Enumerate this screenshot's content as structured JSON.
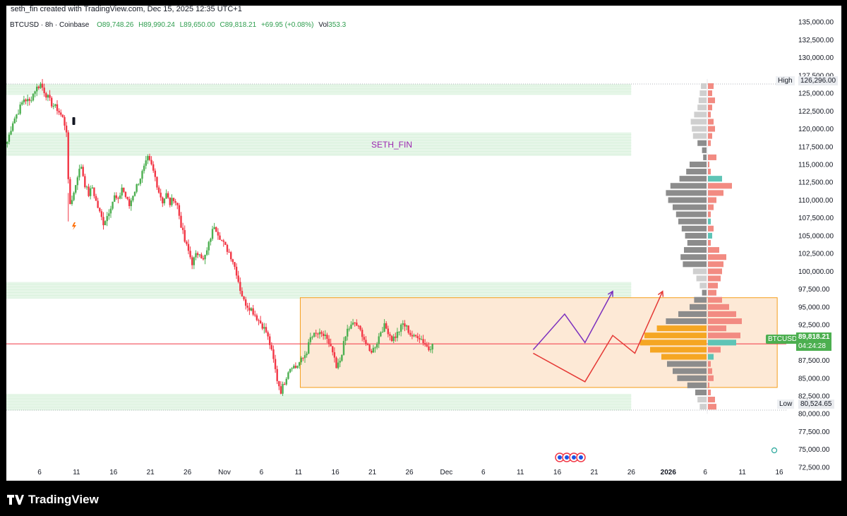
{
  "header": {
    "title": "seth_fin created with TradingView.com, Dec 15, 2025 12:35 UTC+1",
    "symbol": "BTCUSD",
    "interval": "8h",
    "exchange": "Coinbase",
    "open": "O89,748.26",
    "high": "H89,990.24",
    "low": "L89,650.00",
    "close": "C89,818.21",
    "change": "+69.95 (+0.08%)",
    "volume_label": "Vol",
    "volume": "353.3"
  },
  "watermark_text": "SETH_FIN",
  "price_tags": {
    "high_label": "High",
    "high_value": "126,296.00",
    "low_label": "Low",
    "low_value": "80,524.65",
    "current_symbol": "BTCUSD",
    "current_price": "89,818.21",
    "countdown": "04:24:28"
  },
  "footer": {
    "brand": "TradingView"
  },
  "colors": {
    "up": "#26a69a",
    "up_candle": "#4caf50",
    "down_candle": "#f23645",
    "zone_green": "#e6f6e8",
    "range_box_fill": "#fde9d6",
    "range_box_border": "#f59e1b",
    "projection_purple": "#7b2fbe",
    "projection_red": "#e53935",
    "current_line": "#f23645",
    "vp_gray": "#8c8c8c",
    "vp_pink": "#f28b82",
    "vp_orange": "#f5a623",
    "price_tag_green": "#4caf50"
  },
  "chart_data": {
    "type": "candlestick",
    "symbol": "BTCUSD",
    "interval": "8h",
    "y_axis_ticks": [
      "135,000.00",
      "132,500.00",
      "130,000.00",
      "127,500.00",
      "125,000.00",
      "122,500.00",
      "120,000.00",
      "117,500.00",
      "115,000.00",
      "112,500.00",
      "110,000.00",
      "107,500.00",
      "105,000.00",
      "102,500.00",
      "100,000.00",
      "97,500.00",
      "95,000.00",
      "92,500.00",
      "90,000.00",
      "87,500.00",
      "85,000.00",
      "82,500.00",
      "80,000.00",
      "77,500.00",
      "75,000.00",
      "72,500.00"
    ],
    "y_range": [
      71800,
      136500
    ],
    "x_axis_ticks": [
      "6",
      "11",
      "16",
      "21",
      "26",
      "Nov",
      "6",
      "11",
      "16",
      "21",
      "26",
      "Dec",
      "6",
      "11",
      "16",
      "21",
      "26",
      "2026",
      "6",
      "11",
      "16"
    ],
    "price_path": [
      [
        0,
        118200
      ],
      [
        3,
        121000
      ],
      [
        6,
        122500
      ],
      [
        9,
        124200
      ],
      [
        12,
        123800
      ],
      [
        15,
        125500
      ],
      [
        18,
        126296
      ],
      [
        21,
        124800
      ],
      [
        24,
        123500
      ],
      [
        27,
        122800
      ],
      [
        30,
        121500
      ],
      [
        32,
        119800
      ],
      [
        33,
        112500
      ],
      [
        34,
        109500
      ],
      [
        36,
        111000
      ],
      [
        38,
        113500
      ],
      [
        40,
        114800
      ],
      [
        42,
        112200
      ],
      [
        44,
        110800
      ],
      [
        46,
        111800
      ],
      [
        48,
        109800
      ],
      [
        50,
        108200
      ],
      [
        52,
        106800
      ],
      [
        54,
        107800
      ],
      [
        56,
        109200
      ],
      [
        58,
        110500
      ],
      [
        60,
        109800
      ],
      [
        62,
        111800
      ],
      [
        64,
        110500
      ],
      [
        66,
        109200
      ],
      [
        68,
        110800
      ],
      [
        70,
        112000
      ],
      [
        72,
        113200
      ],
      [
        74,
        114500
      ],
      [
        76,
        115800
      ],
      [
        78,
        114800
      ],
      [
        80,
        113200
      ],
      [
        82,
        111200
      ],
      [
        84,
        109800
      ],
      [
        86,
        110800
      ],
      [
        88,
        109500
      ],
      [
        90,
        110300
      ],
      [
        92,
        109200
      ],
      [
        94,
        106500
      ],
      [
        96,
        104200
      ],
      [
        98,
        102800
      ],
      [
        100,
        101200
      ],
      [
        102,
        102200
      ],
      [
        104,
        102800
      ],
      [
        106,
        101500
      ],
      [
        108,
        102800
      ],
      [
        110,
        104800
      ],
      [
        112,
        106500
      ],
      [
        114,
        105400
      ],
      [
        116,
        104300
      ],
      [
        118,
        103400
      ],
      [
        120,
        102700
      ],
      [
        122,
        101500
      ],
      [
        124,
        99800
      ],
      [
        126,
        97500
      ],
      [
        128,
        95800
      ],
      [
        130,
        95200
      ],
      [
        132,
        94700
      ],
      [
        134,
        93900
      ],
      [
        136,
        93100
      ],
      [
        138,
        92400
      ],
      [
        140,
        91500
      ],
      [
        142,
        89800
      ],
      [
        144,
        87500
      ],
      [
        146,
        84800
      ],
      [
        148,
        83200
      ],
      [
        150,
        84500
      ],
      [
        152,
        86100
      ],
      [
        154,
        86800
      ],
      [
        156,
        86500
      ],
      [
        158,
        87200
      ],
      [
        160,
        87800
      ],
      [
        162,
        88800
      ],
      [
        164,
        90600
      ],
      [
        166,
        91000
      ],
      [
        168,
        91200
      ],
      [
        170,
        90900
      ],
      [
        172,
        91100
      ],
      [
        174,
        89600
      ],
      [
        176,
        88600
      ],
      [
        178,
        86300
      ],
      [
        180,
        87500
      ],
      [
        182,
        89800
      ],
      [
        184,
        91800
      ],
      [
        186,
        92300
      ],
      [
        188,
        92800
      ],
      [
        190,
        92000
      ],
      [
        192,
        91200
      ],
      [
        194,
        89800
      ],
      [
        196,
        88700
      ],
      [
        198,
        89100
      ],
      [
        200,
        90100
      ],
      [
        202,
        91600
      ],
      [
        204,
        92300
      ],
      [
        206,
        91600
      ],
      [
        208,
        90500
      ],
      [
        210,
        90900
      ],
      [
        212,
        91700
      ],
      [
        214,
        92600
      ],
      [
        216,
        92100
      ],
      [
        218,
        91200
      ],
      [
        220,
        90700
      ],
      [
        222,
        91000
      ],
      [
        224,
        90500
      ],
      [
        226,
        89800
      ],
      [
        228,
        89100
      ],
      [
        230,
        89818
      ]
    ],
    "x_index_range": [
      0,
      420
    ],
    "zones": [
      {
        "kind": "supply",
        "low": 124800,
        "high": 126300
      },
      {
        "kind": "supply",
        "low": 116200,
        "high": 119500
      },
      {
        "kind": "support",
        "low": 96200,
        "high": 98500
      },
      {
        "kind": "support",
        "low": 80500,
        "high": 82800
      }
    ],
    "range_box": {
      "low": 83700,
      "high": 96300,
      "x_start": 159,
      "x_end": 417
    },
    "current_price": 89818.21,
    "projections": [
      {
        "color": "purple",
        "points": [
          [
            285,
            89000
          ],
          [
            302,
            94000
          ],
          [
            313,
            90000
          ],
          [
            328,
            97200
          ]
        ]
      },
      {
        "color": "red",
        "points": [
          [
            285,
            88500
          ],
          [
            313,
            84500
          ],
          [
            328,
            91000
          ],
          [
            340,
            88500
          ],
          [
            355,
            97200
          ]
        ]
      }
    ],
    "volume_profile": {
      "price_levels": [
        126000,
        125000,
        124000,
        123000,
        122000,
        121000,
        120000,
        119000,
        118000,
        117000,
        116000,
        115000,
        114000,
        113000,
        112000,
        111000,
        110000,
        109000,
        108000,
        107000,
        106000,
        105000,
        104000,
        103000,
        102000,
        101000,
        100000,
        99000,
        98000,
        97000,
        96000,
        95000,
        94000,
        93000,
        92000,
        91000,
        90000,
        89000,
        88000,
        87000,
        86000,
        85000,
        84000,
        83000,
        82000,
        81000
      ],
      "left_volume": [
        10,
        12,
        14,
        16,
        22,
        28,
        26,
        24,
        16,
        8,
        6,
        30,
        36,
        48,
        64,
        72,
        68,
        60,
        54,
        50,
        44,
        38,
        34,
        40,
        46,
        42,
        24,
        18,
        12,
        8,
        22,
        30,
        50,
        72,
        88,
        110,
        118,
        100,
        80,
        70,
        60,
        52,
        34,
        20,
        16,
        12
      ],
      "right_volume": [
        8,
        6,
        10,
        6,
        4,
        8,
        10,
        6,
        4,
        0,
        12,
        2,
        4,
        20,
        34,
        22,
        12,
        8,
        4,
        4,
        8,
        6,
        4,
        16,
        26,
        22,
        20,
        18,
        14,
        12,
        20,
        30,
        40,
        48,
        26,
        46,
        40,
        18,
        8,
        4,
        6,
        8,
        2,
        4,
        10,
        12
      ]
    },
    "events_count": 4
  }
}
